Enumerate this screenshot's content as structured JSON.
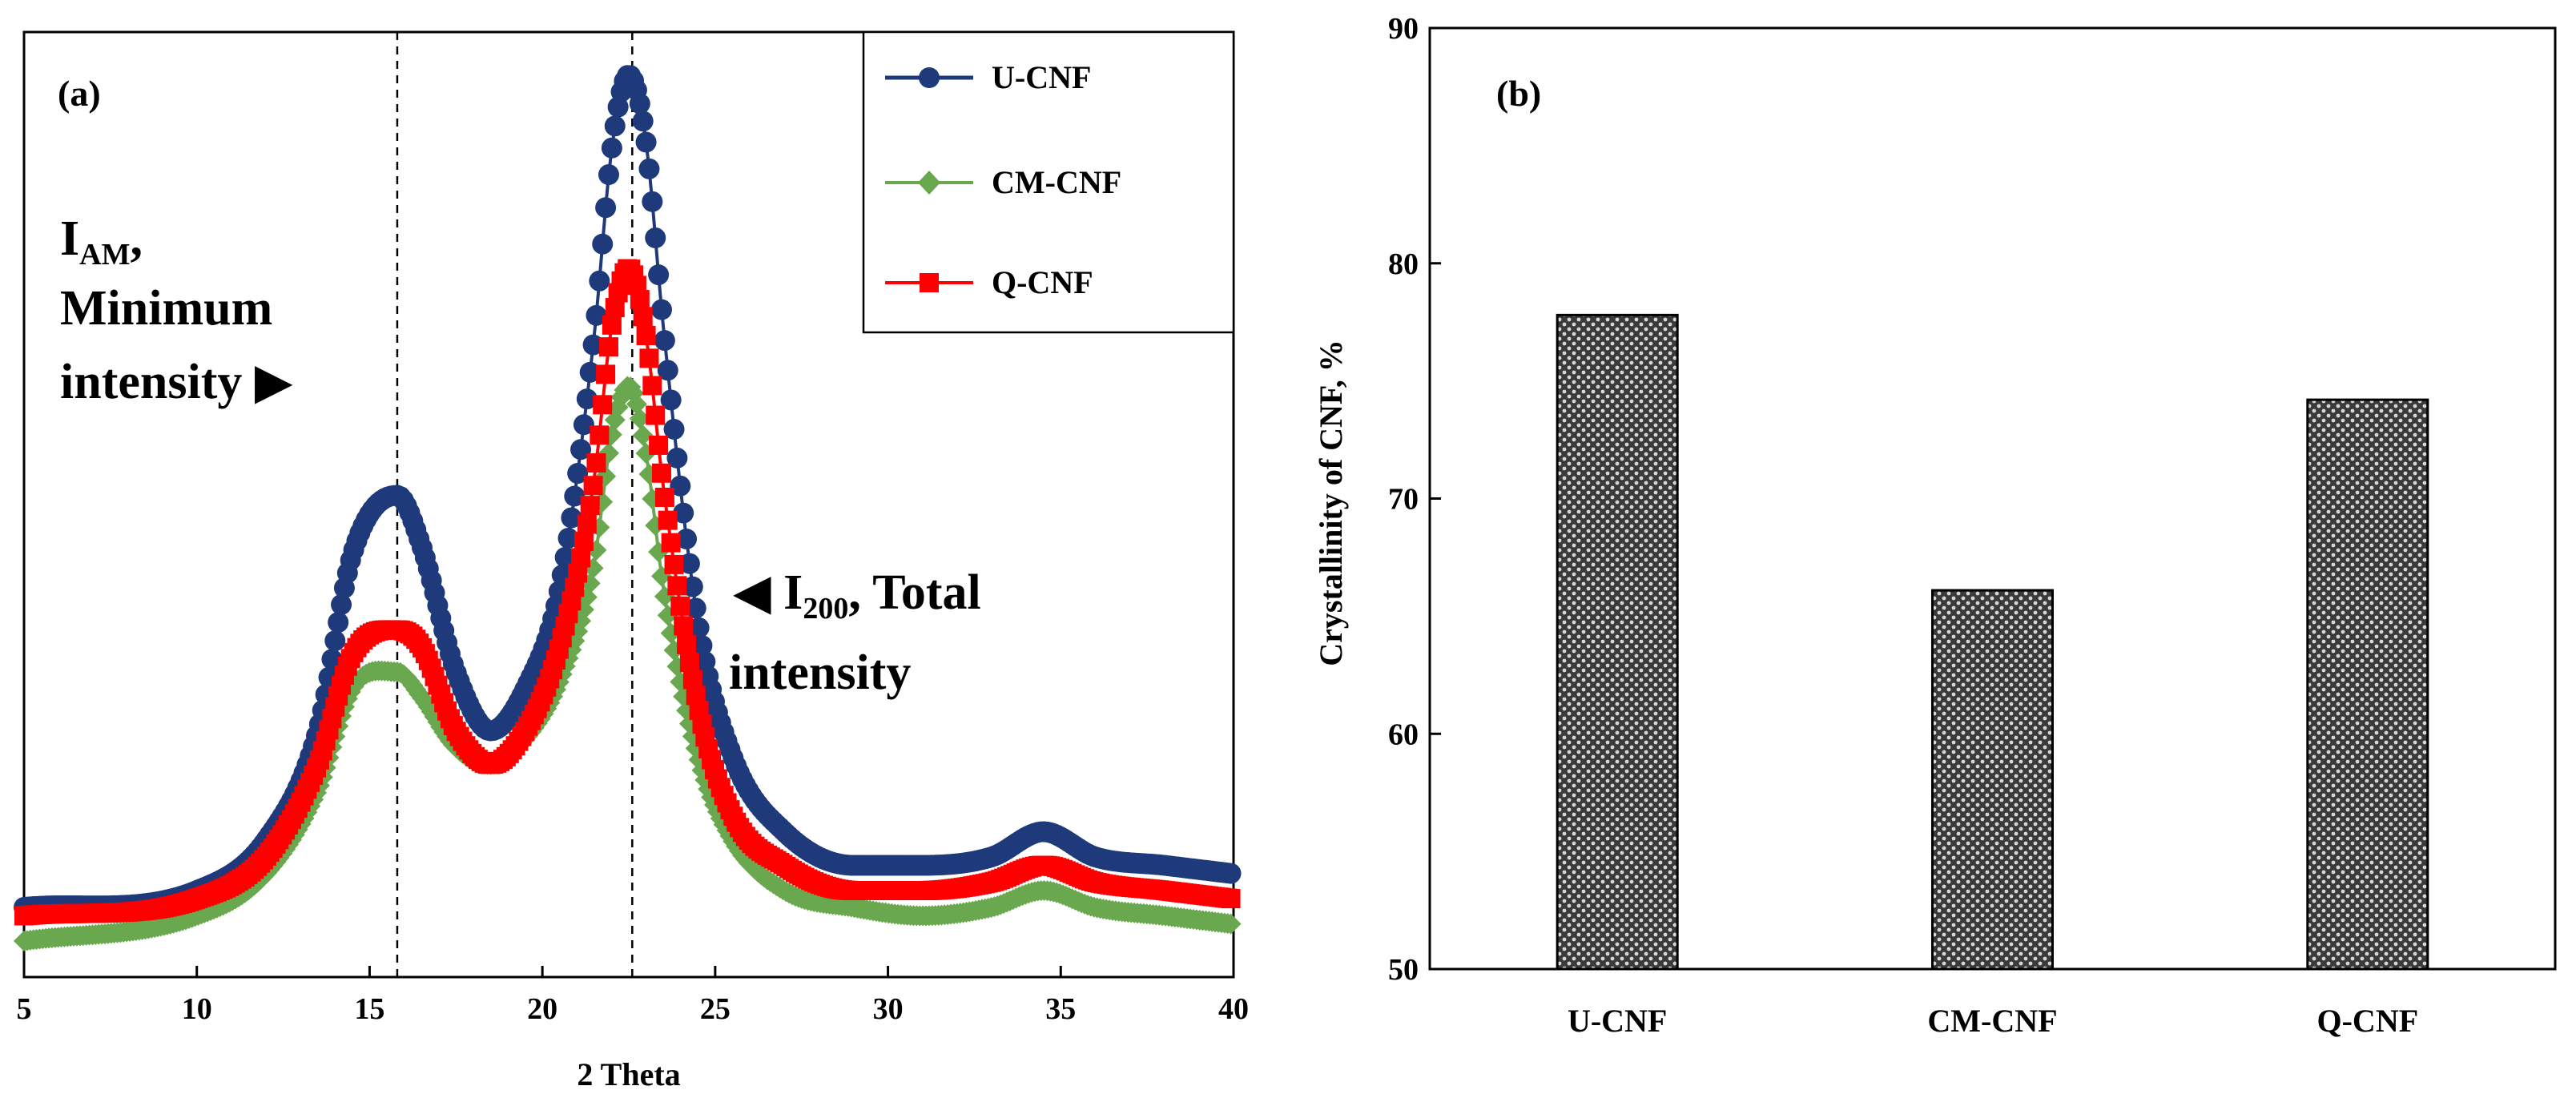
{
  "chart_data": [
    {
      "id": "a",
      "type": "line",
      "panel_label": "(a)",
      "title": "",
      "xlabel": "2 Theta",
      "ylabel": "",
      "xlim": [
        5,
        40
      ],
      "xticks": [
        5,
        10,
        15,
        20,
        25,
        30,
        35,
        40
      ],
      "y_units": "relative intensity (no axis shown)",
      "ylim": [
        0,
        100
      ],
      "vlines": [
        15.8,
        22.6
      ],
      "annotations": [
        {
          "id": "am",
          "lines": [
            {
              "main": "I",
              "sub": "AM",
              "tail": ","
            },
            {
              "main": "Minimum"
            },
            {
              "main": "intensity ▶"
            }
          ]
        },
        {
          "id": "i200",
          "lines": [
            {
              "main": "◀ I",
              "sub": "200",
              "tail": ", Total"
            },
            {
              "main": "intensity"
            }
          ]
        }
      ],
      "legend_position": "top-right",
      "series": [
        {
          "name": "U-CNF",
          "color": "#1f3a7a",
          "marker": "circle",
          "x": [
            5,
            10,
            12,
            13.5,
            14.5,
            15.8,
            16.5,
            17.5,
            18.5,
            19.5,
            20.5,
            21.5,
            22.0,
            22.5,
            23.0,
            23.5,
            24.5,
            25.5,
            27,
            29,
            31,
            33,
            34.5,
            36,
            38,
            40
          ],
          "y": [
            4,
            6,
            12,
            25,
            46,
            53,
            47,
            32,
            25,
            30,
            42,
            72,
            94,
            103,
            95,
            73,
            38,
            22,
            13,
            9,
            9,
            10,
            13,
            10,
            9,
            8
          ]
        },
        {
          "name": "CM-CNF",
          "color": "#6aa84f",
          "marker": "diamond",
          "x": [
            5,
            10,
            12,
            13.5,
            14.5,
            15.8,
            16.5,
            17.5,
            18.5,
            19.5,
            20.5,
            21.5,
            22.0,
            22.5,
            23.0,
            23.5,
            24.5,
            25.5,
            27,
            29,
            31,
            33,
            34.5,
            36,
            38,
            40
          ],
          "y": [
            0,
            3,
            8,
            18,
            30,
            32,
            29,
            23,
            21,
            24,
            31,
            45,
            60,
            66,
            58,
            42,
            22,
            12,
            6,
            4,
            3,
            4,
            6,
            4,
            3,
            2
          ]
        },
        {
          "name": "Q-CNF",
          "color": "#ff0000",
          "marker": "square",
          "x": [
            5,
            10,
            12,
            13.5,
            14.5,
            15.8,
            16.5,
            17.5,
            18.5,
            19.5,
            20.5,
            21.5,
            22.0,
            22.5,
            23.0,
            23.5,
            24.5,
            25.5,
            27,
            29,
            31,
            33,
            34.5,
            36,
            38,
            40
          ],
          "y": [
            3,
            5,
            10,
            21,
            34,
            37,
            35,
            25,
            21,
            25,
            35,
            55,
            73,
            80,
            72,
            54,
            28,
            15,
            9,
            6,
            6,
            7,
            9,
            7,
            6,
            5
          ]
        }
      ]
    },
    {
      "id": "b",
      "type": "bar",
      "panel_label": "(b)",
      "title": "",
      "categories": [
        "U-CNF",
        "CM-CNF",
        "Q-CNF"
      ],
      "values": [
        77.8,
        66.1,
        74.2
      ],
      "xlabel": "",
      "ylabel": "Crystallinity of CNF, %",
      "ylim": [
        50,
        90
      ],
      "yticks": [
        50,
        60,
        70,
        80,
        90
      ],
      "bar_fill": "dotted gray pattern",
      "grid": false
    }
  ]
}
